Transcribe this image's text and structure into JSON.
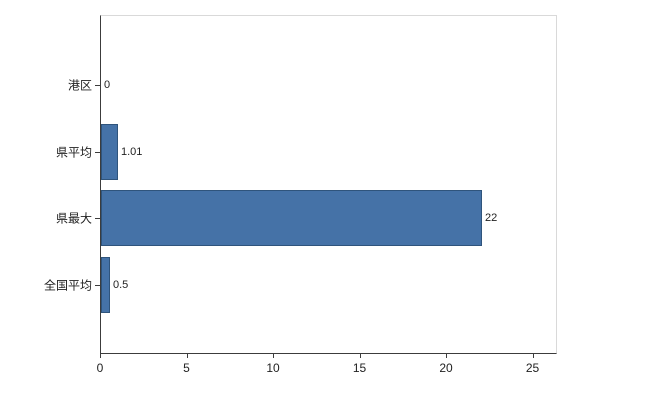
{
  "chart_data": {
    "type": "bar",
    "orientation": "horizontal",
    "title": "",
    "xlabel": "",
    "ylabel": "",
    "categories": [
      "港区",
      "県平均",
      "県最大",
      "全国平均"
    ],
    "values": [
      0,
      1.01,
      22,
      0.5
    ],
    "value_labels": [
      "0",
      "1.01",
      "22",
      "0.5"
    ],
    "x_ticks": [
      0,
      5,
      10,
      15,
      20,
      25
    ],
    "xlim": [
      0,
      26.3
    ],
    "grid": false,
    "legend": false,
    "bar_color": "#4572A7",
    "bar_border_color": "#2F547C",
    "axis_color": "#3c3c3c",
    "frame_color": "#d9d9d9",
    "background_color": "#ffffff"
  }
}
